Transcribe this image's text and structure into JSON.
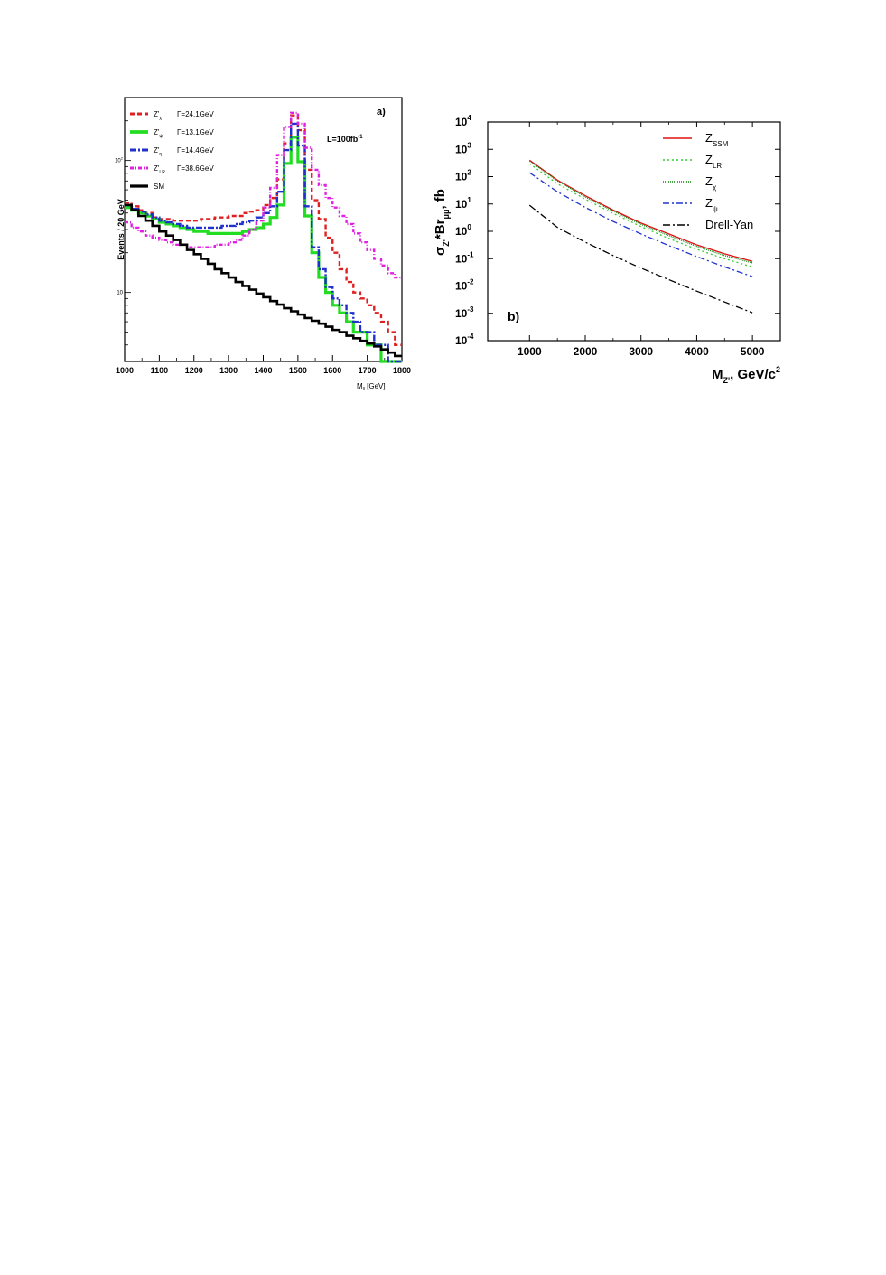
{
  "chart_data": [
    {
      "type": "line",
      "panel_label": "a)",
      "annotation": "L=100fb",
      "annotation_sup": "-1",
      "ylabel": "Events / 20 GeV",
      "xlabel": "M",
      "xlabel_sub": "ll",
      "xlabel_unit": " [GeV]",
      "xlim": [
        1000,
        1800
      ],
      "ylim": [
        3,
        300
      ],
      "yscale": "log",
      "x_ticks": [
        "1000",
        "1100",
        "1200",
        "1300",
        "1400",
        "1500",
        "1600",
        "1700",
        "1800"
      ],
      "y_ticks": [
        {
          "value": 10,
          "base": "10",
          "exp": ""
        },
        {
          "value": 100,
          "base": "10",
          "exp": "2"
        }
      ],
      "x": [
        1000,
        1020,
        1040,
        1060,
        1080,
        1100,
        1120,
        1140,
        1160,
        1180,
        1200,
        1220,
        1240,
        1260,
        1280,
        1300,
        1320,
        1340,
        1360,
        1380,
        1400,
        1420,
        1440,
        1460,
        1480,
        1500,
        1520,
        1540,
        1560,
        1580,
        1600,
        1620,
        1640,
        1660,
        1680,
        1700,
        1720,
        1740,
        1760,
        1780
      ],
      "series": [
        {
          "name": "Z'",
          "sub": "χ",
          "gamma": "Γ=24.1GeV",
          "color": "#e02020",
          "dash": "5,3",
          "width": 2.4,
          "values": [
            48,
            45,
            42,
            40,
            37,
            36,
            36,
            35,
            35,
            35,
            35,
            36,
            36,
            37,
            37,
            38,
            38,
            40,
            41,
            42,
            46,
            52,
            72,
            135,
            220,
            170,
            85,
            50,
            36,
            26,
            20,
            15,
            12,
            10,
            9,
            8,
            7,
            6,
            5,
            4
          ]
        },
        {
          "name": "Z'",
          "sub": "ψ",
          "gamma": "Γ=13.1GeV",
          "color": "#22dd22",
          "dash": "",
          "width": 3.2,
          "values": [
            44,
            42,
            40,
            38,
            36,
            34,
            33,
            32,
            31,
            30,
            29,
            29,
            28,
            28,
            28,
            28,
            28,
            29,
            30,
            31,
            33,
            37,
            46,
            95,
            150,
            98,
            38,
            20,
            13,
            10,
            8,
            7,
            6,
            5,
            5,
            4,
            4,
            3,
            3,
            3
          ]
        },
        {
          "name": "Z'",
          "sub": "η",
          "gamma": "Γ=14.4GeV",
          "color": "#2030cc",
          "dash": "7,2,2,2",
          "width": 2.4,
          "values": [
            46,
            43,
            41,
            39,
            37,
            35,
            34,
            33,
            32,
            31,
            31,
            31,
            31,
            31,
            32,
            32,
            33,
            34,
            35,
            37,
            40,
            45,
            58,
            120,
            190,
            130,
            45,
            22,
            15,
            11,
            9,
            8,
            7,
            6,
            5,
            5,
            4,
            4,
            3,
            3
          ]
        },
        {
          "name": "Z'",
          "sub": "LR",
          "gamma": "Γ=38.6GeV",
          "color": "#e020e0",
          "dash": "4,2,1,2",
          "width": 2.4,
          "values": [
            34,
            31,
            29,
            27,
            26,
            25,
            24,
            23,
            23,
            22,
            22,
            22,
            22,
            23,
            23,
            24,
            25,
            27,
            30,
            35,
            44,
            62,
            110,
            180,
            230,
            190,
            125,
            85,
            65,
            52,
            44,
            38,
            33,
            28,
            24,
            21,
            18,
            16,
            14,
            13
          ]
        },
        {
          "name": "SM",
          "sub": "",
          "gamma": "",
          "color": "#000000",
          "dash": "",
          "width": 2.6,
          "values": [
            46,
            42,
            38,
            35,
            32,
            29,
            27,
            25,
            23,
            21,
            19.5,
            18,
            16.5,
            15,
            14,
            13,
            12,
            11.2,
            10.5,
            9.8,
            9.2,
            8.6,
            8.1,
            7.6,
            7.2,
            6.8,
            6.4,
            6.1,
            5.8,
            5.5,
            5.2,
            5.0,
            4.7,
            4.5,
            4.3,
            4.1,
            3.9,
            3.7,
            3.5,
            3.3
          ]
        }
      ]
    },
    {
      "type": "line",
      "panel_label": "b)",
      "ylabel": {
        "sigma": "σ",
        "z_sub": "Z'",
        "mid": "*Br",
        "mu_sub": "μμ",
        "end": ", fb"
      },
      "xlabel": {
        "m": "M",
        "sub": "Z'",
        "unit": ", GeV/c",
        "sup": "2"
      },
      "xlim": [
        250,
        5500
      ],
      "ylim": [
        0.0001,
        10000
      ],
      "yscale": "log",
      "x_ticks": [
        "1000",
        "2000",
        "3000",
        "4000",
        "5000"
      ],
      "y_ticks": [
        {
          "value": 0.0001,
          "base": "10",
          "exp": "-4"
        },
        {
          "value": 0.001,
          "base": "10",
          "exp": "-3"
        },
        {
          "value": 0.01,
          "base": "10",
          "exp": "-2"
        },
        {
          "value": 0.1,
          "base": "10",
          "exp": "-1"
        },
        {
          "value": 1,
          "base": "10",
          "exp": "0"
        },
        {
          "value": 10,
          "base": "10",
          "exp": "1"
        },
        {
          "value": 100,
          "base": "10",
          "exp": "2"
        },
        {
          "value": 1000,
          "base": "10",
          "exp": "3"
        },
        {
          "value": 10000,
          "base": "10",
          "exp": "4"
        }
      ],
      "x": [
        1000,
        1500,
        2000,
        2500,
        3000,
        3500,
        4000,
        4500,
        5000
      ],
      "series": [
        {
          "name": "Z",
          "sub": "SSM",
          "color": "#dd1111",
          "dash": "",
          "values": [
            400,
            75,
            20,
            6,
            2,
            0.8,
            0.32,
            0.15,
            0.08
          ]
        },
        {
          "name": "Z",
          "sub": "LR",
          "color": "#33cc33",
          "dash": "2,3",
          "values": [
            300,
            55,
            15,
            4.5,
            1.5,
            0.55,
            0.22,
            0.1,
            0.05
          ]
        },
        {
          "name": "Z",
          "sub": "χ",
          "color": "#118811",
          "dash": "1,1",
          "values": [
            380,
            70,
            18,
            5.5,
            1.8,
            0.7,
            0.28,
            0.13,
            0.07
          ]
        },
        {
          "name": "Z",
          "sub": "ψ",
          "color": "#2233cc",
          "dash": "7,3,2,3",
          "values": [
            140,
            28,
            7.5,
            2.3,
            0.8,
            0.3,
            0.12,
            0.05,
            0.022
          ]
        },
        {
          "name": "Drell-Yan",
          "sub": "",
          "color": "#000000",
          "dash": "8,3,2,3",
          "values": [
            9,
            1.4,
            0.4,
            0.13,
            0.045,
            0.017,
            0.0065,
            0.0026,
            0.00105
          ]
        }
      ]
    }
  ]
}
